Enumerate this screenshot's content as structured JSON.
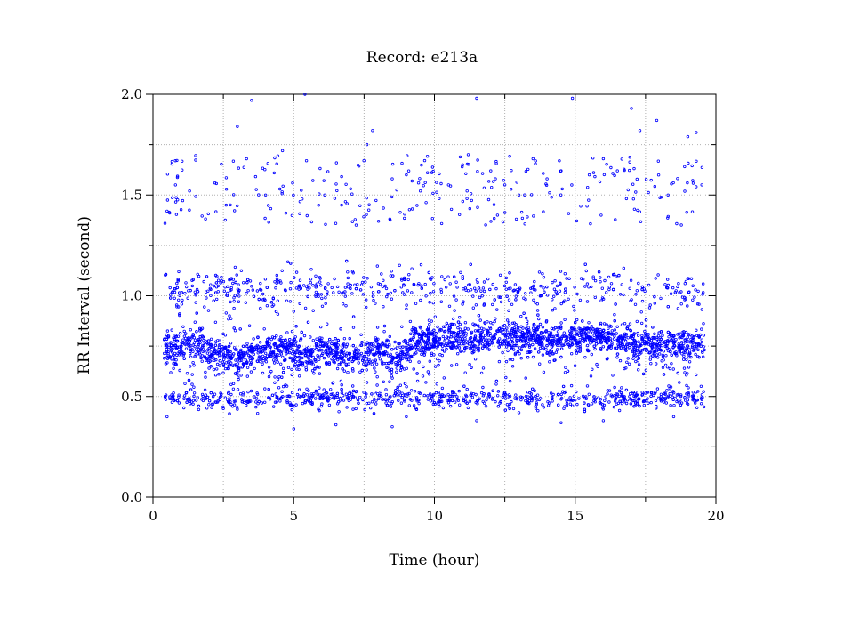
{
  "chart_data": {
    "type": "scatter",
    "title": "Record:  e213a",
    "xlabel": "Time (hour)",
    "ylabel": "RR Interval (second)",
    "xlim": [
      0,
      20
    ],
    "ylim": [
      0,
      2.0
    ],
    "x_ticks": [
      0,
      5,
      10,
      15,
      20
    ],
    "x_tick_labels": [
      "0",
      "5",
      "10",
      "15",
      "20"
    ],
    "y_ticks": [
      0,
      0.5,
      1.0,
      1.5,
      2.0
    ],
    "y_tick_labels": [
      "0.0",
      "0.5",
      "1.0",
      "1.5",
      "2.0"
    ],
    "grid": true,
    "marker": "open-circle",
    "series": [
      {
        "color": "#0000ff",
        "x_range": [
          0.4,
          19.6
        ],
        "bands": [
          {
            "level": 0.75,
            "spread": 0.04
          },
          {
            "level": 0.49,
            "spread": 0.025
          },
          {
            "level": 1.03,
            "spread": 0.05
          }
        ],
        "sample_points": [
          [
            0.5,
            0.75
          ],
          [
            1.0,
            0.75
          ],
          [
            1.5,
            0.78
          ],
          [
            2.0,
            0.7
          ],
          [
            2.5,
            0.72
          ],
          [
            3.0,
            0.68
          ],
          [
            3.5,
            0.72
          ],
          [
            4.0,
            0.74
          ],
          [
            4.5,
            0.73
          ],
          [
            5.0,
            0.72
          ],
          [
            5.5,
            0.7
          ],
          [
            6.0,
            0.73
          ],
          [
            6.5,
            0.72
          ],
          [
            7.0,
            0.69
          ],
          [
            7.5,
            0.7
          ],
          [
            8.0,
            0.74
          ],
          [
            8.5,
            0.68
          ],
          [
            9.0,
            0.73
          ],
          [
            9.5,
            0.76
          ],
          [
            10.0,
            0.77
          ],
          [
            10.5,
            0.79
          ],
          [
            11.0,
            0.8
          ],
          [
            11.5,
            0.78
          ],
          [
            12.0,
            0.8
          ],
          [
            12.5,
            0.81
          ],
          [
            13.0,
            0.79
          ],
          [
            13.5,
            0.8
          ],
          [
            14.0,
            0.78
          ],
          [
            14.5,
            0.79
          ],
          [
            15.0,
            0.78
          ],
          [
            15.5,
            0.79
          ],
          [
            16.0,
            0.8
          ],
          [
            16.5,
            0.78
          ],
          [
            17.0,
            0.76
          ],
          [
            17.5,
            0.77
          ],
          [
            18.0,
            0.76
          ],
          [
            18.5,
            0.77
          ],
          [
            19.0,
            0.75
          ],
          [
            19.5,
            0.76
          ],
          [
            0.5,
            1.42
          ],
          [
            0.8,
            1.55
          ],
          [
            1.3,
            1.52
          ],
          [
            2.2,
            1.56
          ],
          [
            2.6,
            1.45
          ],
          [
            3.0,
            1.84
          ],
          [
            3.5,
            1.97
          ],
          [
            4.0,
            1.5
          ],
          [
            4.6,
            1.72
          ],
          [
            5.3,
            1.48
          ],
          [
            5.4,
            2.0
          ],
          [
            6.1,
            1.5
          ],
          [
            6.7,
            1.45
          ],
          [
            7.6,
            1.75
          ],
          [
            7.8,
            1.82
          ],
          [
            8.5,
            1.58
          ],
          [
            9.0,
            1.6
          ],
          [
            9.5,
            1.52
          ],
          [
            10.5,
            1.55
          ],
          [
            11.0,
            1.65
          ],
          [
            11.2,
            1.7
          ],
          [
            11.5,
            1.98
          ],
          [
            12.0,
            1.62
          ],
          [
            12.5,
            1.55
          ],
          [
            13.0,
            1.5
          ],
          [
            13.5,
            1.68
          ],
          [
            14.0,
            1.58
          ],
          [
            14.5,
            1.62
          ],
          [
            14.9,
            1.98
          ],
          [
            15.5,
            1.6
          ],
          [
            16.0,
            1.68
          ],
          [
            16.5,
            1.62
          ],
          [
            17.0,
            1.93
          ],
          [
            17.3,
            1.82
          ],
          [
            17.9,
            1.87
          ],
          [
            18.3,
            1.5
          ],
          [
            19.0,
            1.79
          ],
          [
            19.3,
            1.81
          ],
          [
            19.5,
            1.55
          ],
          [
            0.5,
            0.4
          ],
          [
            2.5,
            0.44
          ],
          [
            5.0,
            0.34
          ],
          [
            6.5,
            0.36
          ],
          [
            8.5,
            0.35
          ],
          [
            9.0,
            0.4
          ],
          [
            11.5,
            0.38
          ],
          [
            13.0,
            0.42
          ],
          [
            14.5,
            0.37
          ],
          [
            16.0,
            0.38
          ],
          [
            18.5,
            0.4
          ]
        ]
      }
    ]
  }
}
